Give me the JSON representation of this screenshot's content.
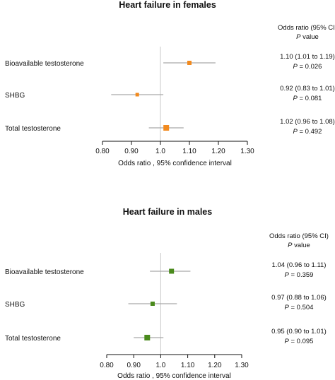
{
  "chart_data": [
    {
      "type": "forest",
      "title": "Heart failure in females",
      "header_line1": "Odds ratio (95% CI)",
      "header_line2_italic": "P",
      "header_line2_rest": " value",
      "xlabel": "Odds ratio , 95% confidence interval",
      "xlim": [
        0.8,
        1.3
      ],
      "ticks": [
        "0.80",
        "0.90",
        "1.0",
        "1.10",
        "1.20",
        "1.30"
      ],
      "tick_values": [
        0.8,
        0.9,
        1.0,
        1.1,
        1.2,
        1.3
      ],
      "reference_line": 1.0,
      "marker_color": "#f28a1e",
      "rows": [
        {
          "label": "Bioavailable testosterone",
          "or": 1.1,
          "lo": 1.01,
          "hi": 1.19,
          "or_text": "1.10 (1.01 to 1.19)",
          "p_label": "P",
          "p_text": " = 0.026"
        },
        {
          "label": "SHBG",
          "or": 0.92,
          "lo": 0.83,
          "hi": 1.01,
          "or_text": "0.92 (0.83 to 1.01)",
          "p_label": "P",
          "p_text": " = 0.081"
        },
        {
          "label": "Total testosterone",
          "or": 1.02,
          "lo": 0.96,
          "hi": 1.08,
          "or_text": "1.02 (0.96 to 1.08)",
          "p_label": "P",
          "p_text": " = 0.492"
        }
      ]
    },
    {
      "type": "forest",
      "title": "Heart failure in males",
      "header_line1": "Odds ratio (95% CI)",
      "header_line2_italic": "P",
      "header_line2_rest": " value",
      "xlabel": "Odds ratio , 95% confidence interval",
      "xlim": [
        0.8,
        1.3
      ],
      "ticks": [
        "0.80",
        "0.90",
        "1.0",
        "1.10",
        "1.20",
        "1.30"
      ],
      "tick_values": [
        0.8,
        0.9,
        1.0,
        1.1,
        1.2,
        1.3
      ],
      "reference_line": 1.0,
      "marker_color": "#4a8a1c",
      "rows": [
        {
          "label": "Bioavailable testosterone",
          "or": 1.04,
          "lo": 0.96,
          "hi": 1.11,
          "or_text": "1.04 (0.96 to 1.11)",
          "p_label": "P",
          "p_text": " = 0.359"
        },
        {
          "label": "SHBG",
          "or": 0.97,
          "lo": 0.88,
          "hi": 1.06,
          "or_text": "0.97 (0.88 to 1.06)",
          "p_label": "P",
          "p_text": " = 0.504"
        },
        {
          "label": "Total testosterone",
          "or": 0.95,
          "lo": 0.9,
          "hi": 1.01,
          "or_text": "0.95 (0.90 to 1.01)",
          "p_label": "P",
          "p_text": " = 0.095"
        }
      ]
    }
  ]
}
